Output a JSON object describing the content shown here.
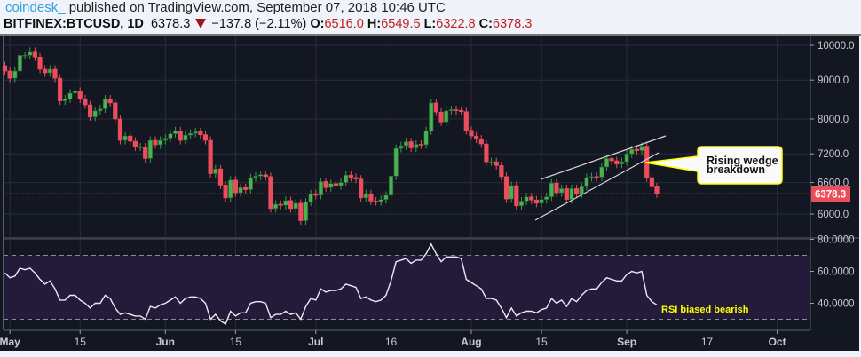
{
  "header": {
    "username": "coindesk_",
    "published": "published on TradingView.com, September 07, 2018 10:46 UTC",
    "symbol": "BITFINEX:BTCUSD, 1D",
    "last": "6378.3",
    "change": "−137.8 (−2.11%)",
    "o_label": "O:",
    "o": "6516.0",
    "h_label": "H:",
    "h": "6549.5",
    "l_label": "L:",
    "l": "6322.8",
    "c_label": "C:",
    "c": "6378.3"
  },
  "colors": {
    "up": "#4caf50",
    "down": "#eb4d5c",
    "bg": "#131722",
    "rsi_fill": "#241a3a",
    "annotation": "#ffff00"
  },
  "annotations": {
    "callout": [
      "Rising wedge",
      "breakdown"
    ],
    "rsi_note": "RSI biased bearish"
  },
  "chart_data": [
    {
      "type": "candlestick",
      "title": "BITFINEX:BTCUSD, 1D",
      "start_date": "2018-04-30",
      "first_open": 9400,
      "close": [
        9250,
        9050,
        9250,
        9700,
        9700,
        9820,
        9650,
        9300,
        9200,
        9300,
        9050,
        8450,
        8500,
        8650,
        8700,
        8500,
        8350,
        8050,
        8200,
        8250,
        8500,
        8400,
        8000,
        7500,
        7600,
        7480,
        7350,
        7350,
        7100,
        7500,
        7400,
        7500,
        7550,
        7650,
        7720,
        7500,
        7620,
        7660,
        7700,
        7630,
        7500,
        6780,
        6880,
        6550,
        6300,
        6650,
        6400,
        6500,
        6460,
        6700,
        6730,
        6760,
        6720,
        6100,
        6180,
        6160,
        6250,
        6100,
        6200,
        5880,
        6220,
        6380,
        6350,
        6620,
        6500,
        6580,
        6540,
        6600,
        6750,
        6700,
        6670,
        6300,
        6380,
        6240,
        6230,
        6270,
        6350,
        6730,
        7320,
        7380,
        7470,
        7330,
        7410,
        7400,
        7720,
        8400,
        8170,
        7930,
        8200,
        8230,
        8210,
        8180,
        7730,
        7600,
        7530,
        7420,
        7030,
        7030,
        6950,
        6720,
        6280,
        6540,
        6150,
        6240,
        6320,
        6260,
        6200,
        6270,
        6320,
        6590,
        6400,
        6480,
        6270,
        6480,
        6370,
        6520,
        6700,
        6720,
        6710,
        6920,
        7100,
        7050,
        6980,
        7030,
        7200,
        7300,
        7270,
        7370,
        6700,
        6516,
        6378.3
      ],
      "y_axis": {
        "scale": "log",
        "ticks": [
          "10000.0",
          "9000.0",
          "8000.0",
          "7200.0",
          "6600.0",
          "6000.0"
        ],
        "tick_values": [
          10000,
          9000,
          8000,
          7200,
          6600,
          6000
        ],
        "range": [
          5650,
          10400
        ]
      },
      "last_price_label": "6378.3",
      "last_price": 6378.3
    },
    {
      "type": "line",
      "title": "RSI",
      "values": [
        59,
        56,
        57,
        62,
        61,
        62,
        59,
        55,
        52,
        54,
        49,
        42,
        42,
        45,
        45,
        42,
        40,
        37,
        40,
        40,
        45,
        43,
        37,
        33,
        34,
        33,
        32,
        32,
        30,
        38,
        37,
        39,
        40,
        42,
        44,
        40,
        43,
        44,
        44,
        43,
        40,
        30,
        33,
        29,
        27,
        35,
        32,
        34,
        34,
        40,
        41,
        41,
        40,
        31,
        33,
        33,
        35,
        33,
        34,
        30,
        38,
        43,
        42,
        49,
        47,
        48,
        48,
        49,
        52,
        51,
        50,
        43,
        44,
        42,
        41,
        42,
        45,
        54,
        66,
        67,
        68,
        65,
        67,
        67,
        71,
        77,
        71,
        66,
        69,
        69,
        69,
        68,
        55,
        53,
        51,
        49,
        43,
        43,
        42,
        37,
        31,
        37,
        32,
        34,
        35,
        35,
        34,
        36,
        37,
        43,
        40,
        42,
        38,
        43,
        41,
        45,
        48,
        49,
        49,
        53,
        56,
        55,
        54,
        54,
        58,
        60,
        59,
        60,
        45,
        41,
        39
      ],
      "y_axis": {
        "ticks": [
          "80.0000",
          "60.0000",
          "40.0000"
        ],
        "tick_values": [
          80,
          60,
          40
        ],
        "range": [
          27,
          81
        ]
      },
      "bands": [
        30,
        70
      ]
    }
  ],
  "x_axis": {
    "labels": [
      "May",
      "15",
      "Jun",
      "15",
      "Jul",
      "16",
      "Aug",
      "15",
      "Sep",
      "17",
      "Oct"
    ],
    "label_dates": [
      "2018-05-01",
      "2018-05-15",
      "2018-06-01",
      "2018-06-15",
      "2018-07-01",
      "2018-07-16",
      "2018-08-01",
      "2018-08-15",
      "2018-09-01",
      "2018-09-17",
      "2018-10-01"
    ]
  }
}
